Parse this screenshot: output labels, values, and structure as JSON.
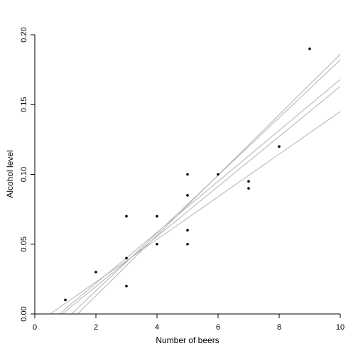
{
  "chart_data": {
    "type": "scatter",
    "xlabel": "Number of beers",
    "ylabel": "Alcohol level",
    "xlim": [
      0,
      10
    ],
    "ylim": [
      0,
      0.2
    ],
    "x_ticks": [
      "0",
      "2",
      "4",
      "6",
      "8",
      "10"
    ],
    "y_ticks": [
      "0.00",
      "0.05",
      "0.10",
      "0.15",
      "0.20"
    ],
    "grid": false,
    "legend": "none",
    "points": [
      {
        "x": 1,
        "y": 0.01
      },
      {
        "x": 2,
        "y": 0.03
      },
      {
        "x": 3,
        "y": 0.02
      },
      {
        "x": 3,
        "y": 0.04
      },
      {
        "x": 3,
        "y": 0.07
      },
      {
        "x": 4,
        "y": 0.05
      },
      {
        "x": 4,
        "y": 0.07
      },
      {
        "x": 5,
        "y": 0.05
      },
      {
        "x": 5,
        "y": 0.06
      },
      {
        "x": 5,
        "y": 0.085
      },
      {
        "x": 5,
        "y": 0.1
      },
      {
        "x": 6,
        "y": 0.1
      },
      {
        "x": 7,
        "y": 0.09
      },
      {
        "x": 7,
        "y": 0.095
      },
      {
        "x": 8,
        "y": 0.12
      },
      {
        "x": 9,
        "y": 0.19
      }
    ],
    "lines": [
      {
        "x": [
          0.5,
          10
        ],
        "y": [
          0.0,
          0.145
        ]
      },
      {
        "x": [
          0.9,
          10
        ],
        "y": [
          0.0,
          0.163
        ]
      },
      {
        "x": [
          0.8,
          10
        ],
        "y": [
          0.0,
          0.168
        ]
      },
      {
        "x": [
          1.2,
          10
        ],
        "y": [
          0.0,
          0.182
        ]
      },
      {
        "x": [
          1.4,
          10
        ],
        "y": [
          0.0,
          0.186
        ]
      }
    ],
    "colors": {
      "points": "#000000",
      "lines": "#b3b3b3",
      "axes": "#000000"
    }
  }
}
